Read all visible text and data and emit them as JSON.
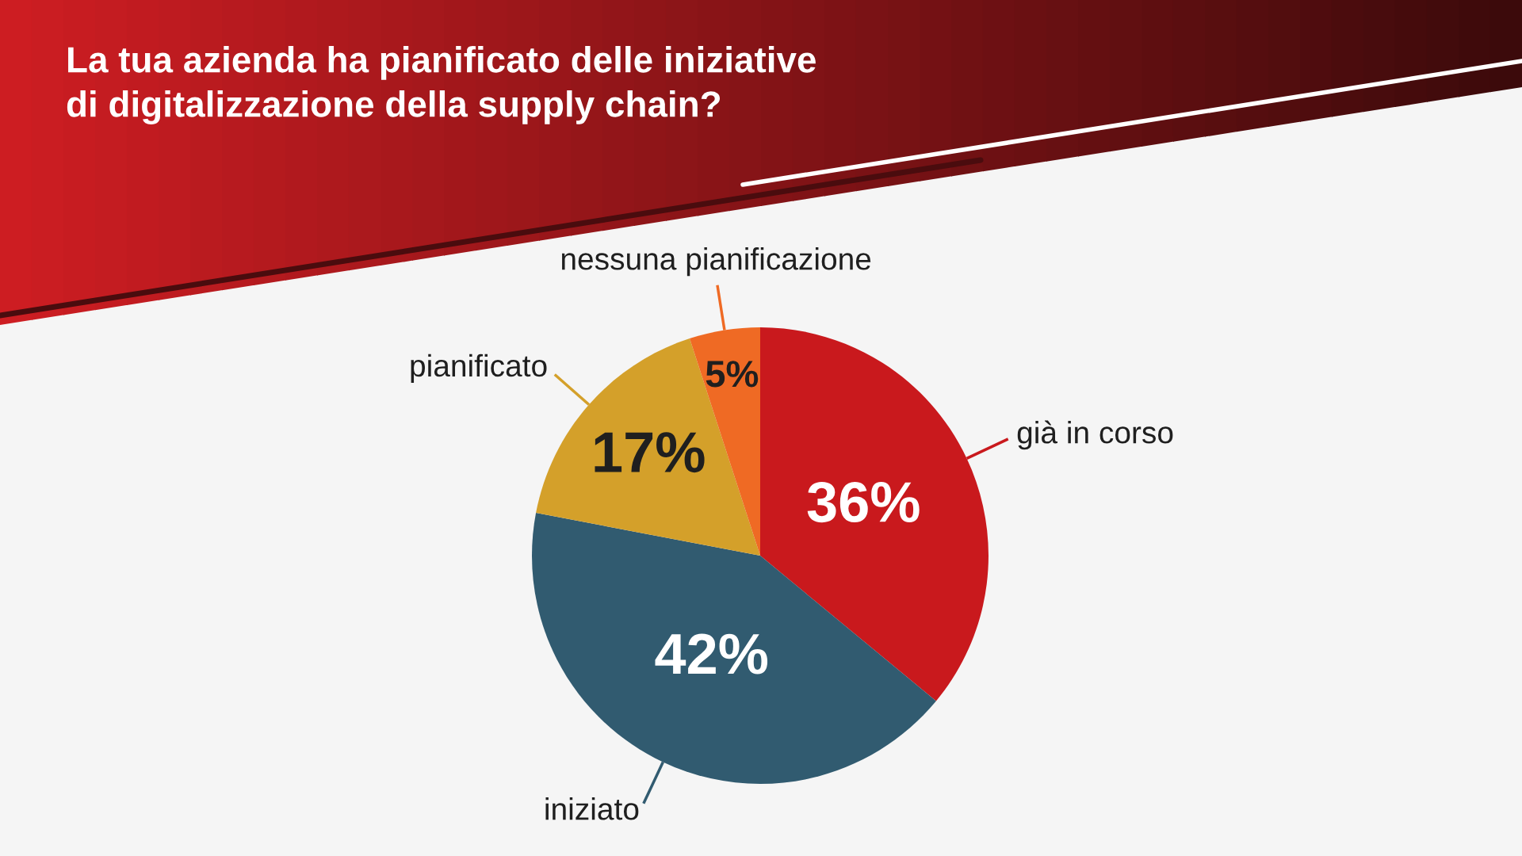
{
  "chart_data": {
    "type": "pie",
    "title": "La tua azienda ha pianificato delle iniziative\ndi digitalizzazione della supply chain?",
    "categories": [
      "già in corso",
      "iniziato",
      "pianificato",
      "nessuna pianificazione"
    ],
    "values": [
      36,
      42,
      17,
      5
    ],
    "colors": [
      "#c9191d",
      "#315b70",
      "#d4a02a",
      "#ef6a24"
    ],
    "value_labels": [
      "36%",
      "42%",
      "17%",
      "5%"
    ]
  }
}
